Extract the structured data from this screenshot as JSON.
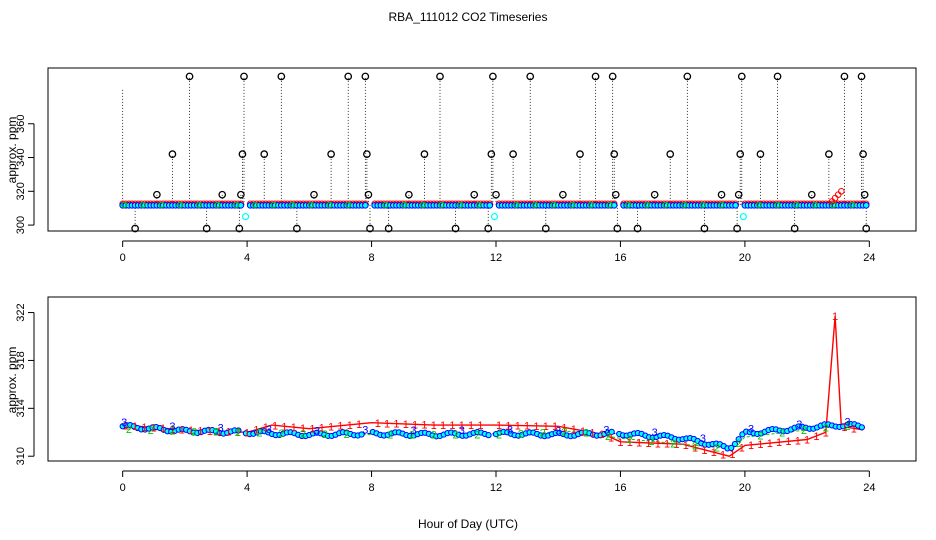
{
  "title": "RBA_111012  CO2 Timeseries",
  "xlabel": "Hour of Day (UTC)",
  "chart_data": [
    {
      "type": "scatter",
      "panel": "top",
      "ylabel": "approx. ppm",
      "xlim": [
        -2.4,
        25.5
      ],
      "ylim": [
        296.5,
        393
      ],
      "xticks": [
        0,
        4,
        8,
        12,
        16,
        20,
        24
      ],
      "yticks": [
        300,
        320,
        340,
        360
      ],
      "grid": false,
      "legend": "none",
      "colors": {
        "flag_high": "#000000",
        "series1": "#ff0000",
        "series2": "#00cc00",
        "series3": "#0000ff",
        "fill": "#00ffff"
      },
      "baseline_ppm": 312,
      "spikes": [
        {
          "x": 0.4,
          "y": 298
        },
        {
          "x": 1.1,
          "y": 318
        },
        {
          "x": 1.6,
          "y": 342
        },
        {
          "x": 2.15,
          "y": 388
        },
        {
          "x": 2.7,
          "y": 298
        },
        {
          "x": 3.2,
          "y": 318
        },
        {
          "x": 3.75,
          "y": 298
        },
        {
          "x": 3.8,
          "y": 318
        },
        {
          "x": 3.85,
          "y": 342
        },
        {
          "x": 3.9,
          "y": 388
        },
        {
          "x": 4.55,
          "y": 342
        },
        {
          "x": 5.1,
          "y": 388
        },
        {
          "x": 5.6,
          "y": 298
        },
        {
          "x": 6.15,
          "y": 318
        },
        {
          "x": 6.7,
          "y": 342
        },
        {
          "x": 7.25,
          "y": 388
        },
        {
          "x": 7.8,
          "y": 388
        },
        {
          "x": 7.85,
          "y": 342
        },
        {
          "x": 7.9,
          "y": 318
        },
        {
          "x": 7.95,
          "y": 298
        },
        {
          "x": 8.55,
          "y": 298
        },
        {
          "x": 9.2,
          "y": 318
        },
        {
          "x": 9.7,
          "y": 342
        },
        {
          "x": 10.2,
          "y": 388
        },
        {
          "x": 10.7,
          "y": 298
        },
        {
          "x": 11.3,
          "y": 318
        },
        {
          "x": 11.75,
          "y": 298
        },
        {
          "x": 11.85,
          "y": 342
        },
        {
          "x": 11.9,
          "y": 388
        },
        {
          "x": 12.0,
          "y": 318
        },
        {
          "x": 12.55,
          "y": 342
        },
        {
          "x": 13.1,
          "y": 388
        },
        {
          "x": 13.6,
          "y": 298
        },
        {
          "x": 14.15,
          "y": 318
        },
        {
          "x": 14.7,
          "y": 342
        },
        {
          "x": 15.2,
          "y": 388
        },
        {
          "x": 15.75,
          "y": 388
        },
        {
          "x": 15.8,
          "y": 342
        },
        {
          "x": 15.85,
          "y": 318
        },
        {
          "x": 15.9,
          "y": 298
        },
        {
          "x": 16.55,
          "y": 298
        },
        {
          "x": 17.1,
          "y": 318
        },
        {
          "x": 17.6,
          "y": 342
        },
        {
          "x": 18.15,
          "y": 388
        },
        {
          "x": 18.7,
          "y": 298
        },
        {
          "x": 19.25,
          "y": 318
        },
        {
          "x": 19.75,
          "y": 298
        },
        {
          "x": 19.8,
          "y": 318
        },
        {
          "x": 19.85,
          "y": 342
        },
        {
          "x": 19.9,
          "y": 388
        },
        {
          "x": 20.5,
          "y": 342
        },
        {
          "x": 21.05,
          "y": 388
        },
        {
          "x": 21.6,
          "y": 298
        },
        {
          "x": 22.15,
          "y": 318
        },
        {
          "x": 22.7,
          "y": 342
        },
        {
          "x": 23.2,
          "y": 388
        },
        {
          "x": 23.75,
          "y": 388
        },
        {
          "x": 23.8,
          "y": 342
        },
        {
          "x": 23.85,
          "y": 318
        },
        {
          "x": 23.9,
          "y": 298
        }
      ],
      "low_outliers": [
        {
          "x": 3.95,
          "y": 305
        },
        {
          "x": 11.95,
          "y": 305
        },
        {
          "x": 19.95,
          "y": 305
        }
      ]
    },
    {
      "type": "line",
      "panel": "bottom",
      "ylabel": "approx. ppm",
      "xlim": [
        -2.4,
        25.5
      ],
      "ylim": [
        309.6,
        323.3
      ],
      "xticks": [
        0,
        4,
        8,
        12,
        16,
        20,
        24
      ],
      "yticks": [
        310,
        314,
        318,
        322
      ],
      "grid": false,
      "legend": "none",
      "series": [
        {
          "marker": "3",
          "color": "#0000ff",
          "x": [
            0,
            2,
            4,
            6,
            8,
            10,
            12,
            14,
            16,
            18,
            19.5,
            20,
            22,
            23,
            23.8
          ],
          "y": [
            312.5,
            312.1,
            312.0,
            311.8,
            311.9,
            311.8,
            311.9,
            311.8,
            311.9,
            311.5,
            310.7,
            311.9,
            312.4,
            312.6,
            312.5
          ]
        },
        {
          "marker": "1",
          "color": "#ff0000",
          "x": [
            0,
            2,
            4,
            4.8,
            6,
            8,
            10,
            12,
            14,
            15.5,
            16,
            18,
            19.5,
            20,
            22,
            22.6,
            22.9,
            23.1,
            23.8
          ],
          "y": [
            312.6,
            312.2,
            312.0,
            312.6,
            312.3,
            312.8,
            312.6,
            312.6,
            312.5,
            311.8,
            311.2,
            311.0,
            310.0,
            310.9,
            311.4,
            312.0,
            321.7,
            312.5,
            312.2
          ]
        },
        {
          "marker": "2",
          "color": "#00cc00",
          "x": [
            0,
            2,
            4,
            8,
            12,
            14.6,
            16,
            18,
            19.6,
            20,
            22,
            23,
            23.8
          ],
          "y": [
            312.3,
            312.1,
            312.0,
            311.8,
            311.8,
            312.1,
            311.5,
            311.0,
            310.6,
            311.6,
            312.2,
            312.5,
            312.6
          ]
        }
      ]
    }
  ]
}
